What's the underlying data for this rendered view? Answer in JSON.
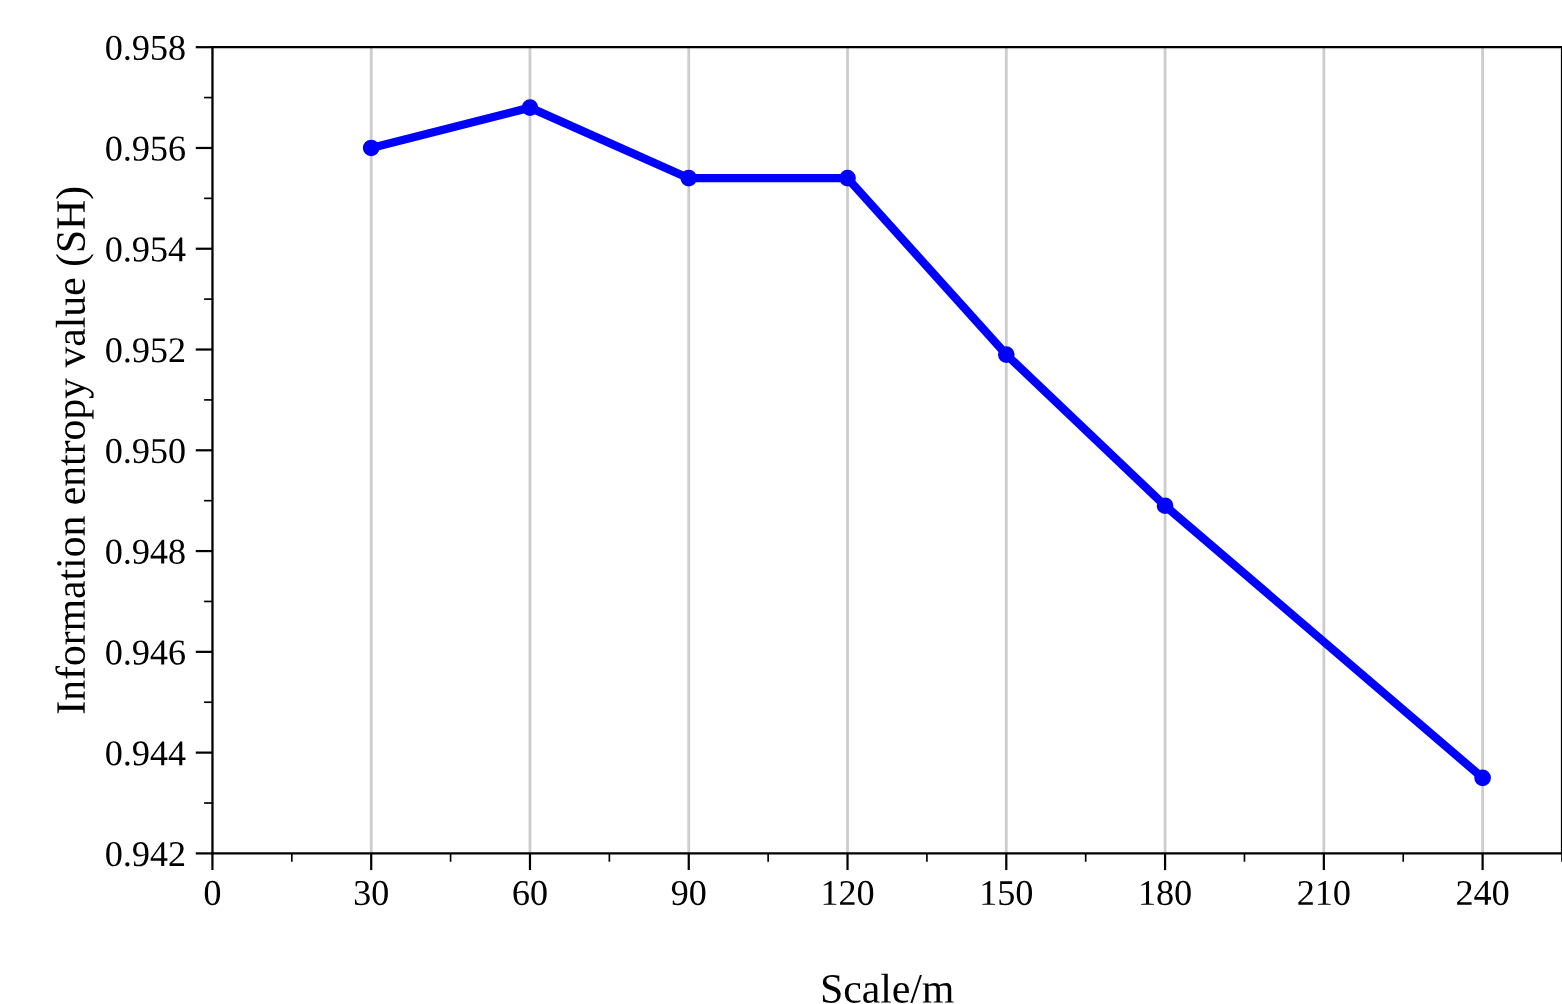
{
  "chart_data": {
    "type": "line",
    "xlabel": "Scale/m",
    "ylabel": "Information entropy value (SH)",
    "x": [
      30,
      60,
      90,
      120,
      150,
      180,
      240
    ],
    "series": [
      {
        "color": "#0000ff",
        "values": [
          0.956,
          0.9568,
          0.9554,
          0.9554,
          0.9519,
          0.9489,
          0.9435
        ]
      }
    ],
    "xlim": [
      0,
      255
    ],
    "xticks": [
      0,
      30,
      60,
      90,
      120,
      150,
      180,
      210,
      240
    ],
    "ylim": [
      0.942,
      0.958
    ],
    "yticks": [
      {
        "value": 0.942,
        "label": "0.942"
      },
      {
        "value": 0.944,
        "label": "0.944"
      },
      {
        "value": 0.946,
        "label": "0.946"
      },
      {
        "value": 0.948,
        "label": "0.948"
      },
      {
        "value": 0.95,
        "label": "0.950"
      },
      {
        "value": 0.952,
        "label": "0.952"
      },
      {
        "value": 0.954,
        "label": "0.954"
      },
      {
        "value": 0.956,
        "label": "0.956"
      },
      {
        "value": 0.958,
        "label": "0.958"
      }
    ],
    "grid": "x",
    "marker": "circle",
    "line_style": "solid"
  }
}
